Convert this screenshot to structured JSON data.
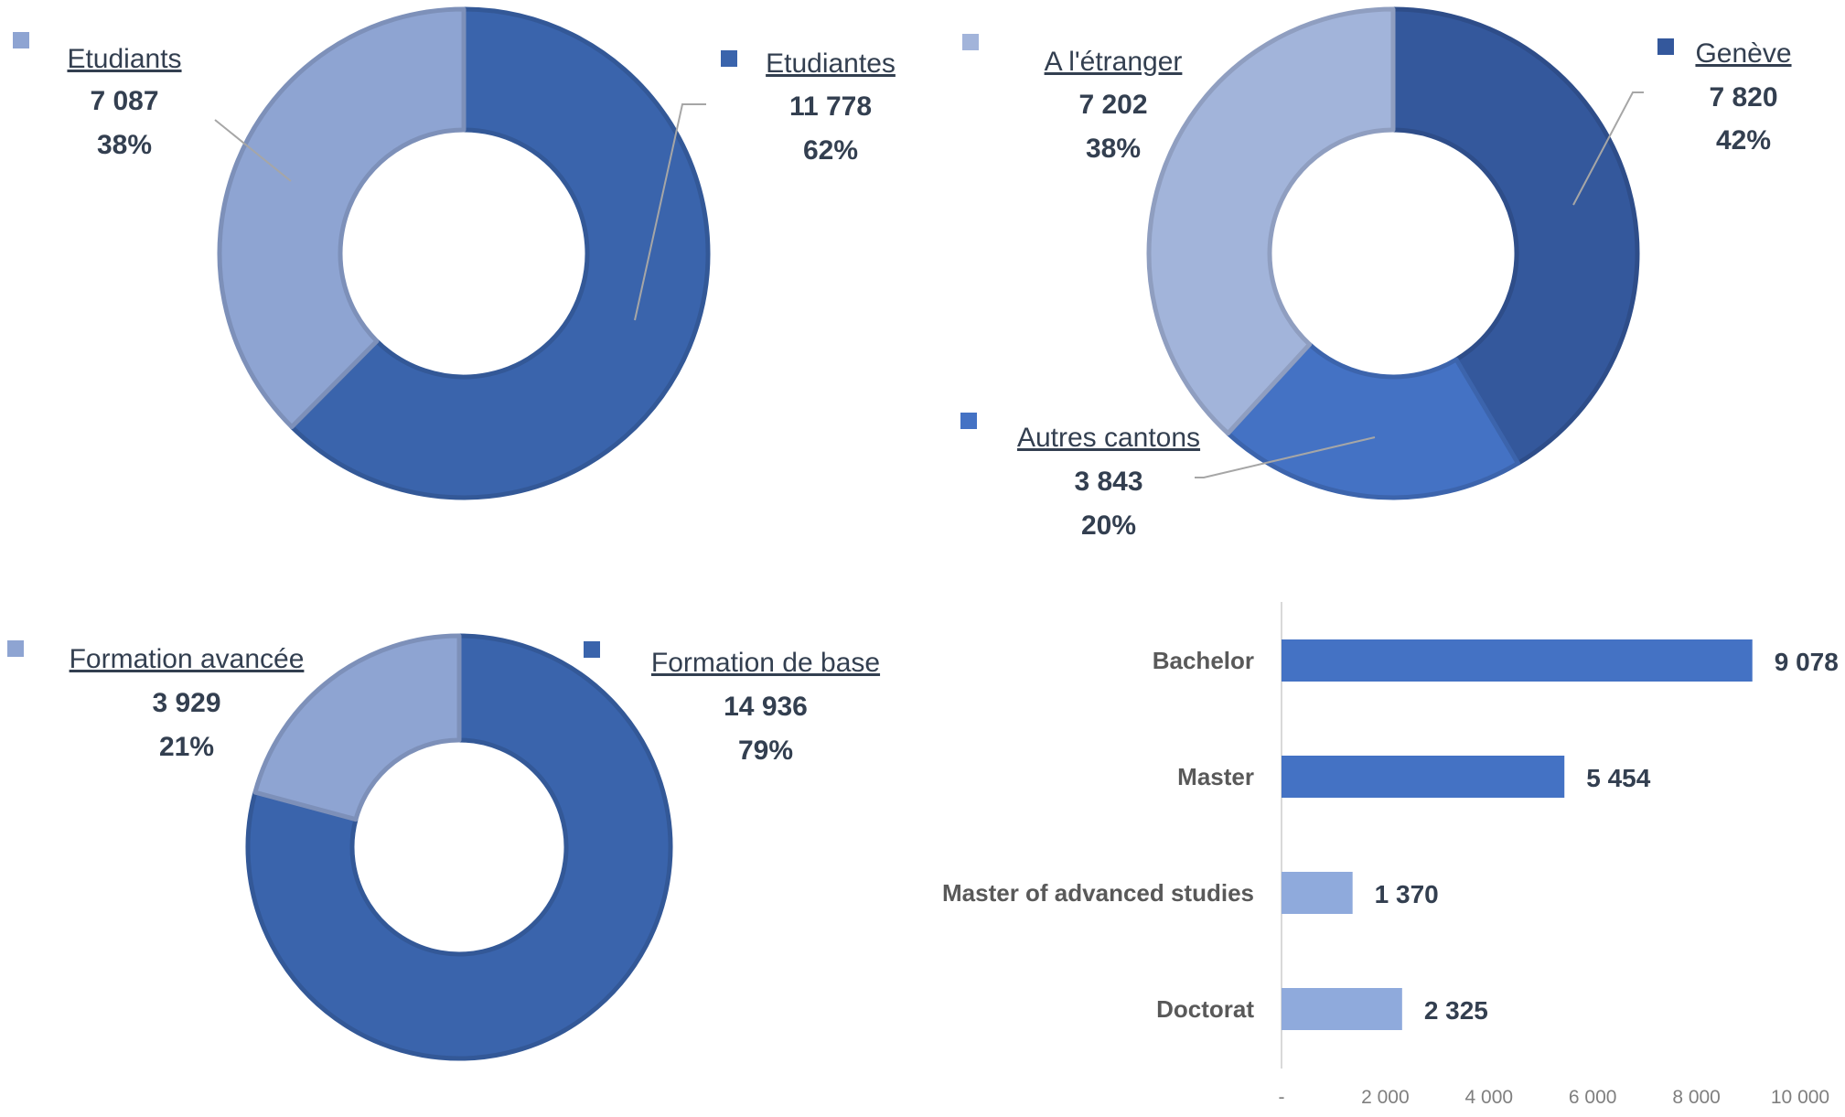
{
  "chart_data": [
    {
      "type": "pie",
      "variant": "donut",
      "title": "",
      "labels": [
        "Etudiantes",
        "Etudiants"
      ],
      "values": [
        11778,
        7087
      ],
      "value_labels": [
        "11 778",
        "7 087"
      ],
      "percent_labels": [
        "62%",
        "38%"
      ],
      "colors": [
        "#3A64AC",
        "#8EA4D2"
      ]
    },
    {
      "type": "pie",
      "variant": "donut",
      "title": "",
      "labels": [
        "Genève",
        "Autres cantons",
        "A l'étranger"
      ],
      "values": [
        7820,
        3843,
        7202
      ],
      "value_labels": [
        "7 820",
        "3 843",
        "7 202"
      ],
      "percent_labels": [
        "42%",
        "20%",
        "38%"
      ],
      "colors": [
        "#34589C",
        "#4472C4",
        "#A2B4DA"
      ]
    },
    {
      "type": "pie",
      "variant": "donut",
      "title": "",
      "labels": [
        "Formation de base",
        "Formation avancée"
      ],
      "values": [
        14936,
        3929
      ],
      "value_labels": [
        "14 936",
        "3 929"
      ],
      "percent_labels": [
        "79%",
        "21%"
      ],
      "colors": [
        "#3A64AC",
        "#8EA4D2"
      ]
    },
    {
      "type": "bar",
      "orientation": "horizontal",
      "title": "",
      "xlabel": "",
      "ylabel": "",
      "categories": [
        "Bachelor",
        "Master",
        "Master of advanced studies",
        "Doctorat"
      ],
      "values": [
        9078,
        5454,
        1370,
        2325
      ],
      "value_labels": [
        "9 078",
        "5 454",
        "1 370",
        "2 325"
      ],
      "bar_colors": [
        "#4472C4",
        "#4472C4",
        "#8FAADC",
        "#8FAADC"
      ],
      "xlim": [
        0,
        10000
      ],
      "xticks": [
        0,
        2000,
        4000,
        6000,
        8000,
        10000
      ],
      "xtick_labels": [
        "-",
        "2 000",
        "4 000",
        "6 000",
        "8 000",
        "10 000"
      ],
      "grid": false,
      "legend": "none"
    }
  ]
}
